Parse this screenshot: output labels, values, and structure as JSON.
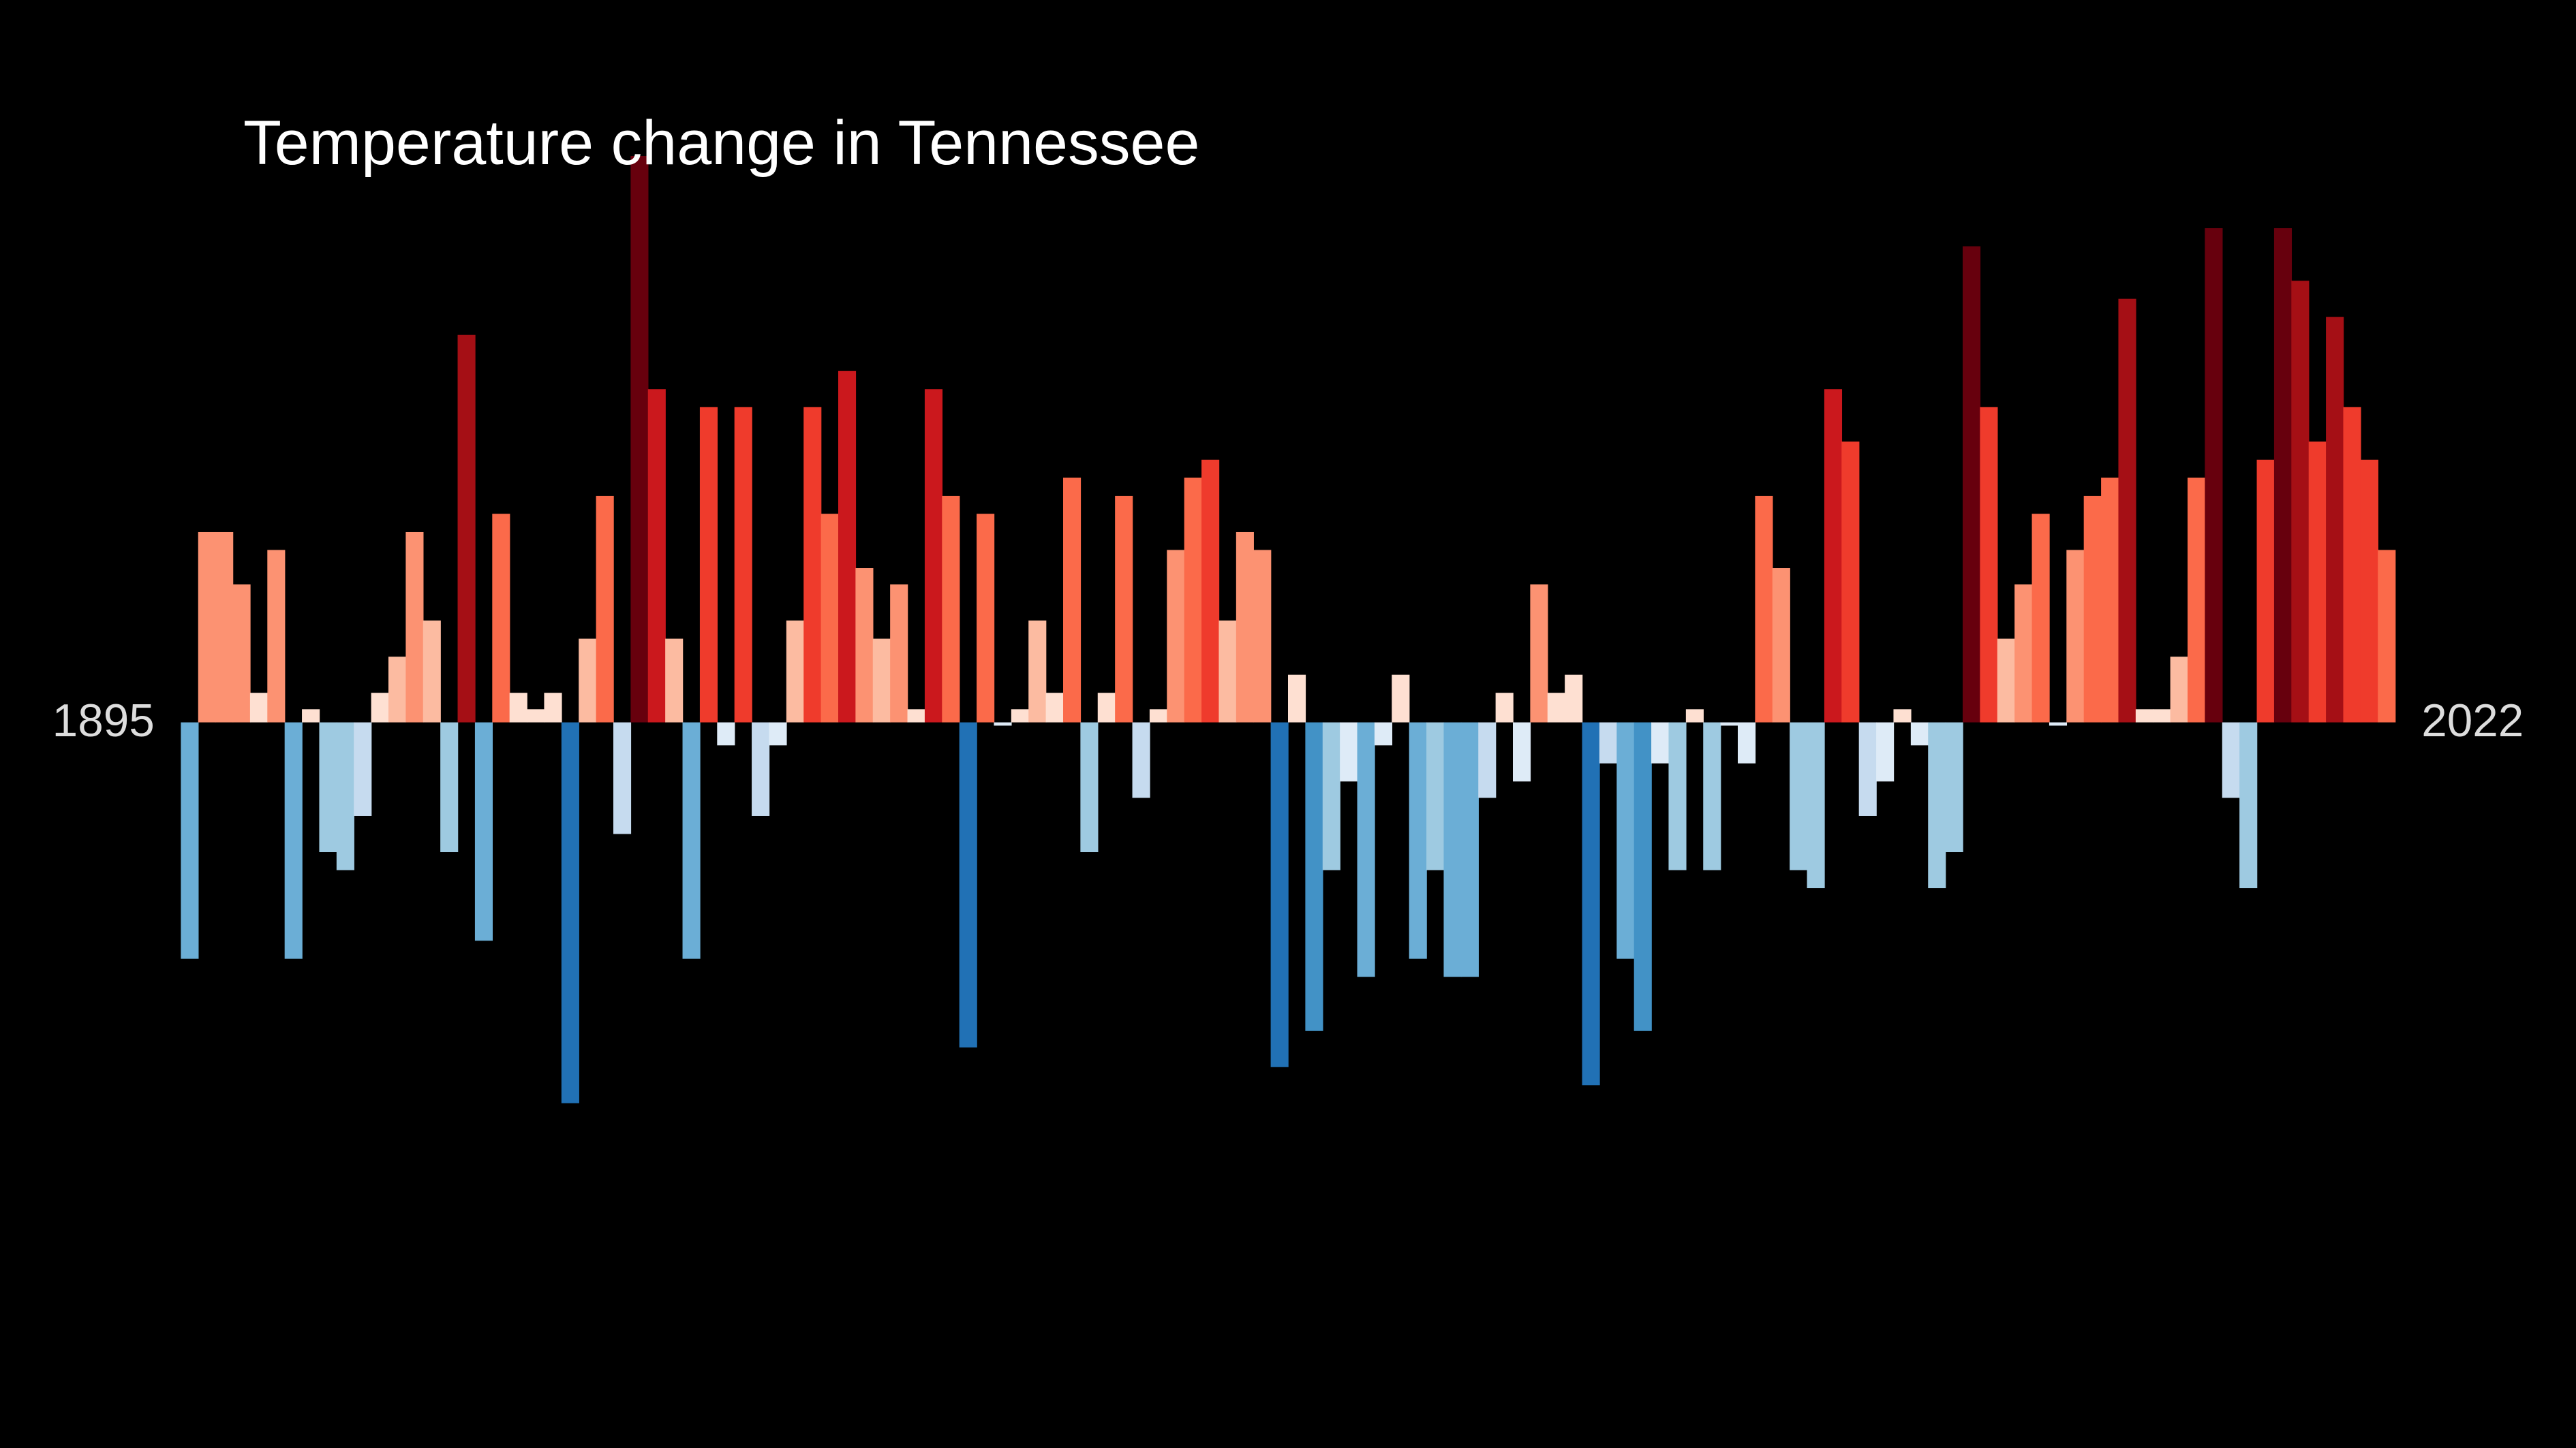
{
  "chart_data": {
    "type": "bar",
    "title": "Temperature change in Tennessee",
    "categories": [
      "1895",
      null,
      null,
      null,
      null,
      null,
      null,
      null,
      null,
      null,
      null,
      null,
      null,
      null,
      null,
      null,
      null,
      null,
      null,
      null,
      null,
      null,
      null,
      null,
      null,
      null,
      null,
      null,
      null,
      null,
      null,
      null,
      null,
      null,
      null,
      null,
      null,
      null,
      null,
      null,
      null,
      null,
      null,
      null,
      null,
      null,
      null,
      null,
      null,
      null,
      null,
      null,
      null,
      null,
      null,
      null,
      null,
      null,
      null,
      null,
      null,
      null,
      null,
      null,
      null,
      null,
      null,
      null,
      null,
      null,
      null,
      null,
      null,
      null,
      null,
      null,
      null,
      null,
      null,
      null,
      null,
      null,
      null,
      null,
      null,
      null,
      null,
      null,
      null,
      null,
      null,
      null,
      null,
      null,
      null,
      null,
      null,
      null,
      null,
      null,
      null,
      null,
      null,
      null,
      null,
      null,
      null,
      null,
      null,
      null,
      null,
      null,
      null,
      null,
      null,
      null,
      null,
      null,
      null,
      null,
      null,
      null,
      null,
      null,
      null,
      null,
      null,
      "2022"
    ],
    "values": [
      -1.44,
      1.16,
      1.16,
      0.84,
      0.18,
      1.05,
      -1.44,
      0.08,
      -0.79,
      -0.9,
      -0.57,
      0.18,
      0.4,
      1.16,
      0.62,
      -0.79,
      2.36,
      -1.33,
      1.27,
      0.18,
      0.08,
      0.18,
      -2.32,
      0.51,
      1.38,
      -0.68,
      3.45,
      2.03,
      0.51,
      -1.44,
      1.92,
      -0.14,
      1.92,
      -0.57,
      -0.14,
      0.62,
      1.92,
      1.27,
      2.14,
      0.94,
      0.51,
      0.84,
      0.08,
      2.03,
      1.38,
      -1.98,
      1.27,
      -0.02,
      0.08,
      0.62,
      0.18,
      1.49,
      -0.79,
      0.18,
      1.38,
      -0.46,
      0.08,
      1.05,
      1.49,
      1.6,
      0.62,
      1.16,
      1.05,
      -2.1,
      0.29,
      -1.88,
      -0.9,
      -0.36,
      -1.55,
      -0.14,
      0.29,
      -1.44,
      -0.9,
      -1.55,
      -1.55,
      -0.46,
      0.18,
      -0.36,
      0.84,
      0.18,
      0.29,
      -2.21,
      -0.25,
      -1.44,
      -1.88,
      -0.25,
      -0.9,
      0.08,
      -0.9,
      -0.02,
      -0.25,
      1.38,
      0.94,
      -0.9,
      -1.01,
      2.03,
      1.71,
      -0.57,
      -0.36,
      0.08,
      -0.14,
      -1.01,
      -0.79,
      2.9,
      1.92,
      0.51,
      0.84,
      1.27,
      -0.02,
      1.05,
      1.38,
      1.49,
      2.58,
      0.08,
      0.08,
      0.4,
      1.49,
      3.01,
      -0.46,
      -1.01,
      1.6,
      3.01,
      2.69,
      1.71,
      2.47,
      1.92,
      1.6,
      1.05
    ],
    "colors": [
      "#6baed6",
      "#fc9272",
      "#fc9272",
      "#fc9272",
      "#fee0d2",
      "#fc9272",
      "#6baed6",
      "#fee0d2",
      "#9ecae1",
      "#9ecae1",
      "#c6dbef",
      "#fee0d2",
      "#fcbba1",
      "#fc9272",
      "#fcbba1",
      "#9ecae1",
      "#a50f15",
      "#6baed6",
      "#fb6a4a",
      "#fee0d2",
      "#fee0d2",
      "#fee0d2",
      "#2171b5",
      "#fcbba1",
      "#fb6a4a",
      "#c6dbef",
      "#67000d",
      "#cb181d",
      "#fcbba1",
      "#6baed6",
      "#ef3b2c",
      "#deebf7",
      "#ef3b2c",
      "#c6dbef",
      "#deebf7",
      "#fcbba1",
      "#ef3b2c",
      "#fb6a4a",
      "#cb181d",
      "#fc9272",
      "#fcbba1",
      "#fc9272",
      "#fee0d2",
      "#cb181d",
      "#fb6a4a",
      "#2171b5",
      "#fb6a4a",
      "#deebf7",
      "#fee0d2",
      "#fcbba1",
      "#fee0d2",
      "#fb6a4a",
      "#9ecae1",
      "#fee0d2",
      "#fb6a4a",
      "#c6dbef",
      "#fee0d2",
      "#fc9272",
      "#fb6a4a",
      "#ef3b2c",
      "#fcbba1",
      "#fc9272",
      "#fc9272",
      "#2171b5",
      "#fee0d2",
      "#4292c6",
      "#9ecae1",
      "#deebf7",
      "#6baed6",
      "#deebf7",
      "#fee0d2",
      "#6baed6",
      "#9ecae1",
      "#6baed6",
      "#6baed6",
      "#c6dbef",
      "#fee0d2",
      "#deebf7",
      "#fc9272",
      "#fee0d2",
      "#fee0d2",
      "#2171b5",
      "#c6dbef",
      "#6baed6",
      "#4292c6",
      "#deebf7",
      "#9ecae1",
      "#fee0d2",
      "#9ecae1",
      "#deebf7",
      "#deebf7",
      "#fb6a4a",
      "#fc9272",
      "#9ecae1",
      "#9ecae1",
      "#cb181d",
      "#ef3b2c",
      "#c6dbef",
      "#deebf7",
      "#fee0d2",
      "#deebf7",
      "#9ecae1",
      "#9ecae1",
      "#67000d",
      "#ef3b2c",
      "#fcbba1",
      "#fc9272",
      "#fb6a4a",
      "#deebf7",
      "#fc9272",
      "#fb6a4a",
      "#fb6a4a",
      "#a50f15",
      "#fee0d2",
      "#fee0d2",
      "#fcbba1",
      "#fb6a4a",
      "#67000d",
      "#c6dbef",
      "#9ecae1",
      "#ef3b2c",
      "#67000d",
      "#a50f15",
      "#ef3b2c",
      "#a50f15",
      "#ef3b2c",
      "#ef3b2c",
      "#fb6a4a"
    ],
    "ylim": [
      -3.9,
      3.9
    ]
  }
}
